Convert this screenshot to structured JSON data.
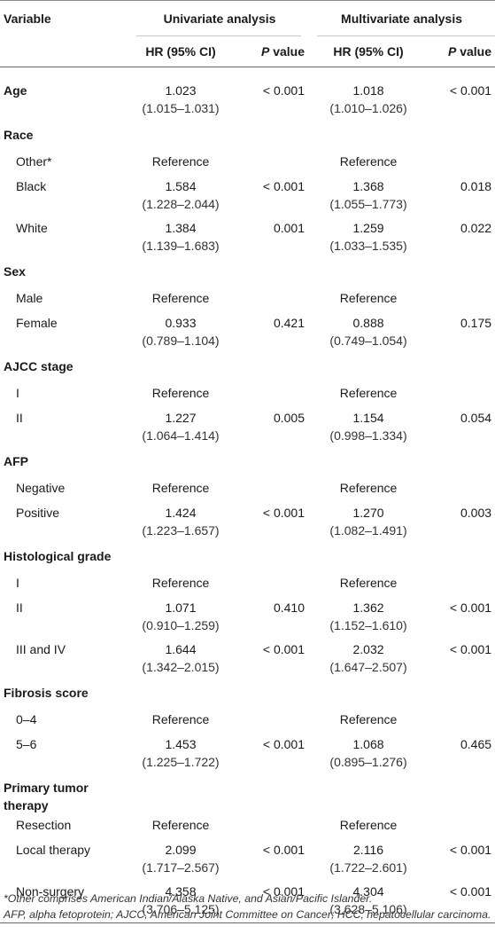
{
  "header": {
    "variable": "Variable",
    "univariate": "Univariate analysis",
    "multivariate": "Multivariate analysis",
    "hr_label": "HR (95% CI)",
    "p_label_italic": "P",
    "p_label_rest": " value"
  },
  "rows": [
    {
      "label": "Age",
      "type": "cat-data",
      "uni_hr": "1.023",
      "uni_ci": "(1.015–1.031)",
      "uni_p": "< 0.001",
      "multi_hr": "1.018",
      "multi_ci": "(1.010–1.026)",
      "multi_p": "< 0.001"
    },
    {
      "label": "Race",
      "type": "cat"
    },
    {
      "label": "Other*",
      "type": "ref",
      "uni_hr": "Reference",
      "multi_hr": "Reference"
    },
    {
      "label": "Black",
      "type": "data",
      "uni_hr": "1.584",
      "uni_ci": "(1.228–2.044)",
      "uni_p": "< 0.001",
      "multi_hr": "1.368",
      "multi_ci": "(1.055–1.773)",
      "multi_p": "0.018"
    },
    {
      "label": "White",
      "type": "data",
      "uni_hr": "1.384",
      "uni_ci": "(1.139–1.683)",
      "uni_p": "0.001",
      "multi_hr": "1.259",
      "multi_ci": "(1.033–1.535)",
      "multi_p": "0.022"
    },
    {
      "label": "Sex",
      "type": "cat"
    },
    {
      "label": "Male",
      "type": "ref",
      "uni_hr": "Reference",
      "multi_hr": "Reference"
    },
    {
      "label": "Female",
      "type": "data",
      "uni_hr": "0.933",
      "uni_ci": "(0.789–1.104)",
      "uni_p": "0.421",
      "multi_hr": "0.888",
      "multi_ci": "(0.749–1.054)",
      "multi_p": "0.175"
    },
    {
      "label": "AJCC stage",
      "type": "cat"
    },
    {
      "label": "I",
      "type": "ref",
      "uni_hr": "Reference",
      "multi_hr": "Reference"
    },
    {
      "label": "II",
      "type": "data",
      "uni_hr": "1.227",
      "uni_ci": "(1.064–1.414)",
      "uni_p": "0.005",
      "multi_hr": "1.154",
      "multi_ci": "(0.998–1.334)",
      "multi_p": "0.054"
    },
    {
      "label": "AFP",
      "type": "cat"
    },
    {
      "label": "Negative",
      "type": "ref",
      "uni_hr": "Reference",
      "multi_hr": "Reference"
    },
    {
      "label": "Positive",
      "type": "data",
      "uni_hr": "1.424",
      "uni_ci": "(1.223–1.657)",
      "uni_p": "< 0.001",
      "multi_hr": "1.270",
      "multi_ci": "(1.082–1.491)",
      "multi_p": "0.003"
    },
    {
      "label": "Histological grade",
      "type": "cat"
    },
    {
      "label": "I",
      "type": "ref",
      "uni_hr": "Reference",
      "multi_hr": "Reference"
    },
    {
      "label": "II",
      "type": "data",
      "uni_hr": "1.071",
      "uni_ci": "(0.910–1.259)",
      "uni_p": "0.410",
      "multi_hr": "1.362",
      "multi_ci": "(1.152–1.610)",
      "multi_p": "< 0.001"
    },
    {
      "label": "III and IV",
      "type": "data",
      "uni_hr": "1.644",
      "uni_ci": "(1.342–2.015)",
      "uni_p": "< 0.001",
      "multi_hr": "2.032",
      "multi_ci": "(1.647–2.507)",
      "multi_p": "< 0.001"
    },
    {
      "label": "Fibrosis score",
      "type": "cat"
    },
    {
      "label": "0–4",
      "type": "ref",
      "uni_hr": "Reference",
      "multi_hr": "Reference"
    },
    {
      "label": "5–6",
      "type": "data",
      "uni_hr": "1.453",
      "uni_ci": "(1.225–1.722)",
      "uni_p": "< 0.001",
      "multi_hr": "1.068",
      "multi_ci": "(0.895–1.276)",
      "multi_p": "0.465"
    },
    {
      "label": "Primary tumor therapy",
      "type": "cat"
    },
    {
      "label": "Resection",
      "type": "ref",
      "uni_hr": "Reference",
      "multi_hr": "Reference"
    },
    {
      "label": "Local therapy",
      "type": "data",
      "uni_hr": "2.099",
      "uni_ci": "(1.717–2.567)",
      "uni_p": "< 0.001",
      "multi_hr": "2.116",
      "multi_ci": "(1.722–2.601)",
      "multi_p": "< 0.001"
    },
    {
      "label": "Non-surgery",
      "type": "data",
      "uni_hr": "4.358",
      "uni_ci": "(3.706–5.125)",
      "uni_p": "< 0.001",
      "multi_hr": "4.304",
      "multi_ci": "(3.628–5.106)",
      "multi_p": "< 0.001"
    }
  ],
  "footnotes": {
    "line1": "*Other comprises American Indian/Alaska Native, and Asian/Pacific Islander.",
    "line2": "AFP, alpha fetoprotein; AJCC, American Joint Committee on Cancer; HCC, hepatocellular carcinoma."
  }
}
